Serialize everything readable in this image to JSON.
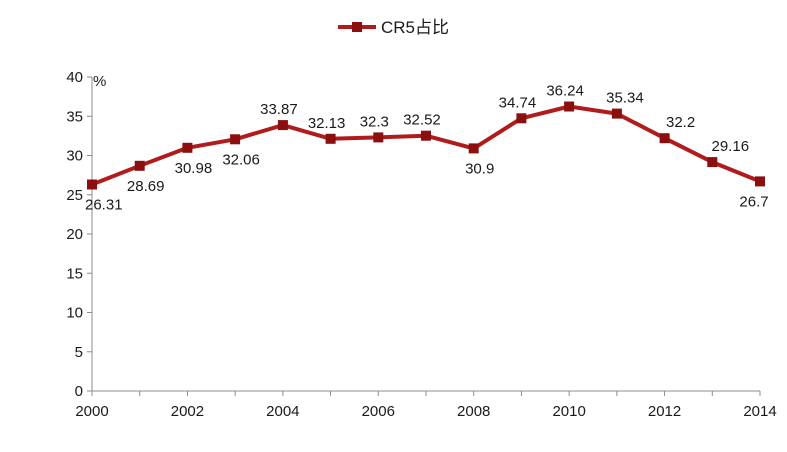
{
  "chart_data": {
    "type": "line",
    "x": [
      2000,
      2001,
      2002,
      2003,
      2004,
      2005,
      2006,
      2007,
      2008,
      2009,
      2010,
      2011,
      2012,
      2013,
      2014
    ],
    "series": [
      {
        "name": "CR5占比",
        "values": [
          26.31,
          28.69,
          30.98,
          32.06,
          33.87,
          32.13,
          32.3,
          32.52,
          30.9,
          34.74,
          36.24,
          35.34,
          32.2,
          29.16,
          26.7
        ],
        "color": "#b01c1c",
        "marker_color": "#8b0f0f"
      }
    ],
    "data_labels": [
      "26.31",
      "28.69",
      "30.98",
      "32.06",
      "33.87",
      "32.13",
      "32.3",
      "32.52",
      "30.9",
      "34.74",
      "36.24",
      "35.34",
      "32.2",
      "29.16",
      "26.7"
    ],
    "ylabel": "%",
    "ylim": [
      0,
      40
    ],
    "yticks": [
      "0",
      "5",
      "10",
      "15",
      "20",
      "25",
      "30",
      "35",
      "40"
    ],
    "xlim": [
      2000,
      2014
    ],
    "xticks": [
      "2000",
      "2002",
      "2004",
      "2006",
      "2008",
      "2010",
      "2012",
      "2014"
    ],
    "grid": false,
    "legend_position": "top-center",
    "legend_label": "CR5占比"
  }
}
